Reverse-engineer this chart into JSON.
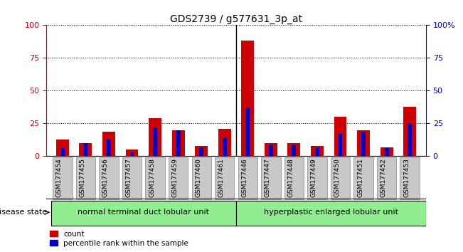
{
  "title": "GDS2739 / g577631_3p_at",
  "samples": [
    "GSM177454",
    "GSM177455",
    "GSM177456",
    "GSM177457",
    "GSM177458",
    "GSM177459",
    "GSM177460",
    "GSM177461",
    "GSM177446",
    "GSM177447",
    "GSM177448",
    "GSM177449",
    "GSM177450",
    "GSM177451",
    "GSM177452",
    "GSM177453"
  ],
  "count_values": [
    13,
    10,
    19,
    5,
    29,
    20,
    8,
    21,
    88,
    10,
    10,
    8,
    30,
    20,
    7,
    38
  ],
  "percentile_values": [
    6,
    10,
    13,
    3,
    22,
    20,
    7,
    14,
    37,
    9,
    9,
    7,
    17,
    19,
    6,
    25
  ],
  "count_color": "#cc0000",
  "percentile_color": "#0000cc",
  "ylim": [
    0,
    100
  ],
  "yticks": [
    0,
    25,
    50,
    75,
    100
  ],
  "group1_label": "normal terminal duct lobular unit",
  "group2_label": "hyperplastic enlarged lobular unit",
  "group_color": "#90ee90",
  "disease_state_label": "disease state",
  "left_axis_color": "#cc0000",
  "right_axis_color": "#0000cc",
  "bg_color": "#ffffff",
  "ticklabel_bg": "#c8c8c8",
  "n_group1": 8,
  "n_group2": 8
}
